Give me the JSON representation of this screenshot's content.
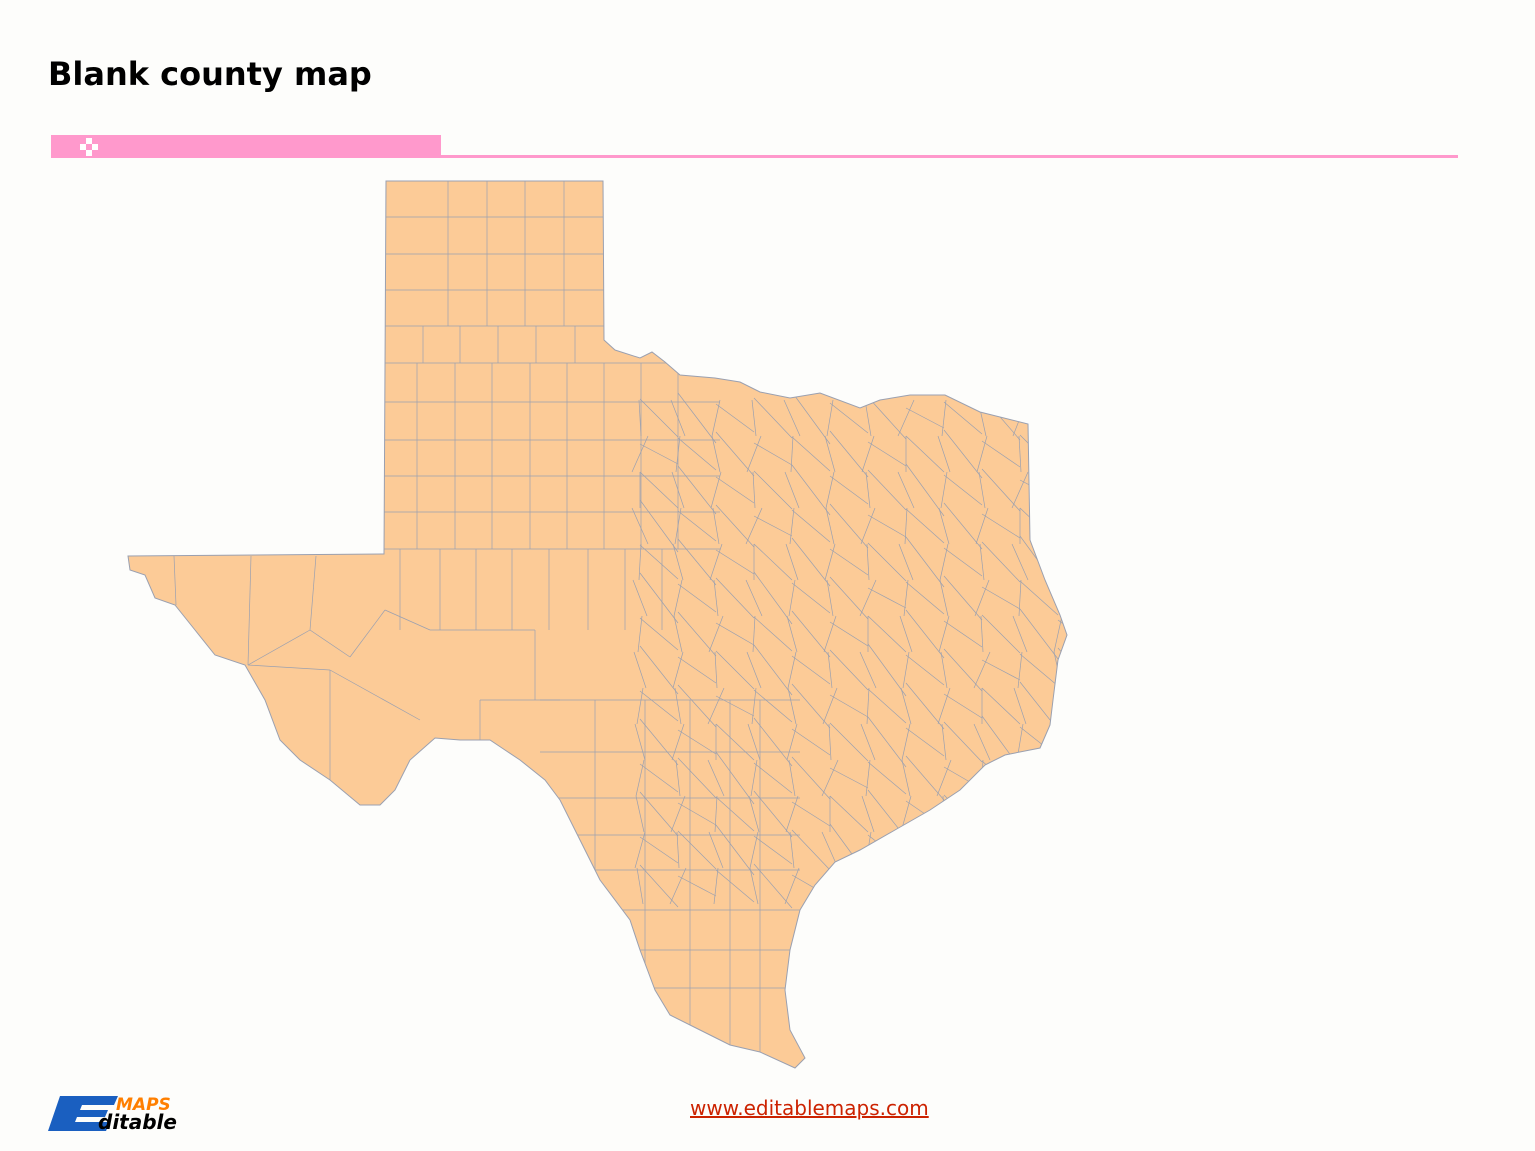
{
  "page": {
    "title": "Blank county map"
  },
  "colors": {
    "accent": "#ff99cc",
    "county_fill": "#fccb97",
    "county_border": "#9aa0b0",
    "link": "#cc2200",
    "logo_blue": "#1a5fc0",
    "logo_orange": "#ff7f00"
  },
  "map": {
    "region": "Texas",
    "style": "blank county map"
  },
  "footer": {
    "url": "www.editablemaps.com",
    "logo_text_top": "MAPS",
    "logo_text_bottom": "Editable"
  }
}
